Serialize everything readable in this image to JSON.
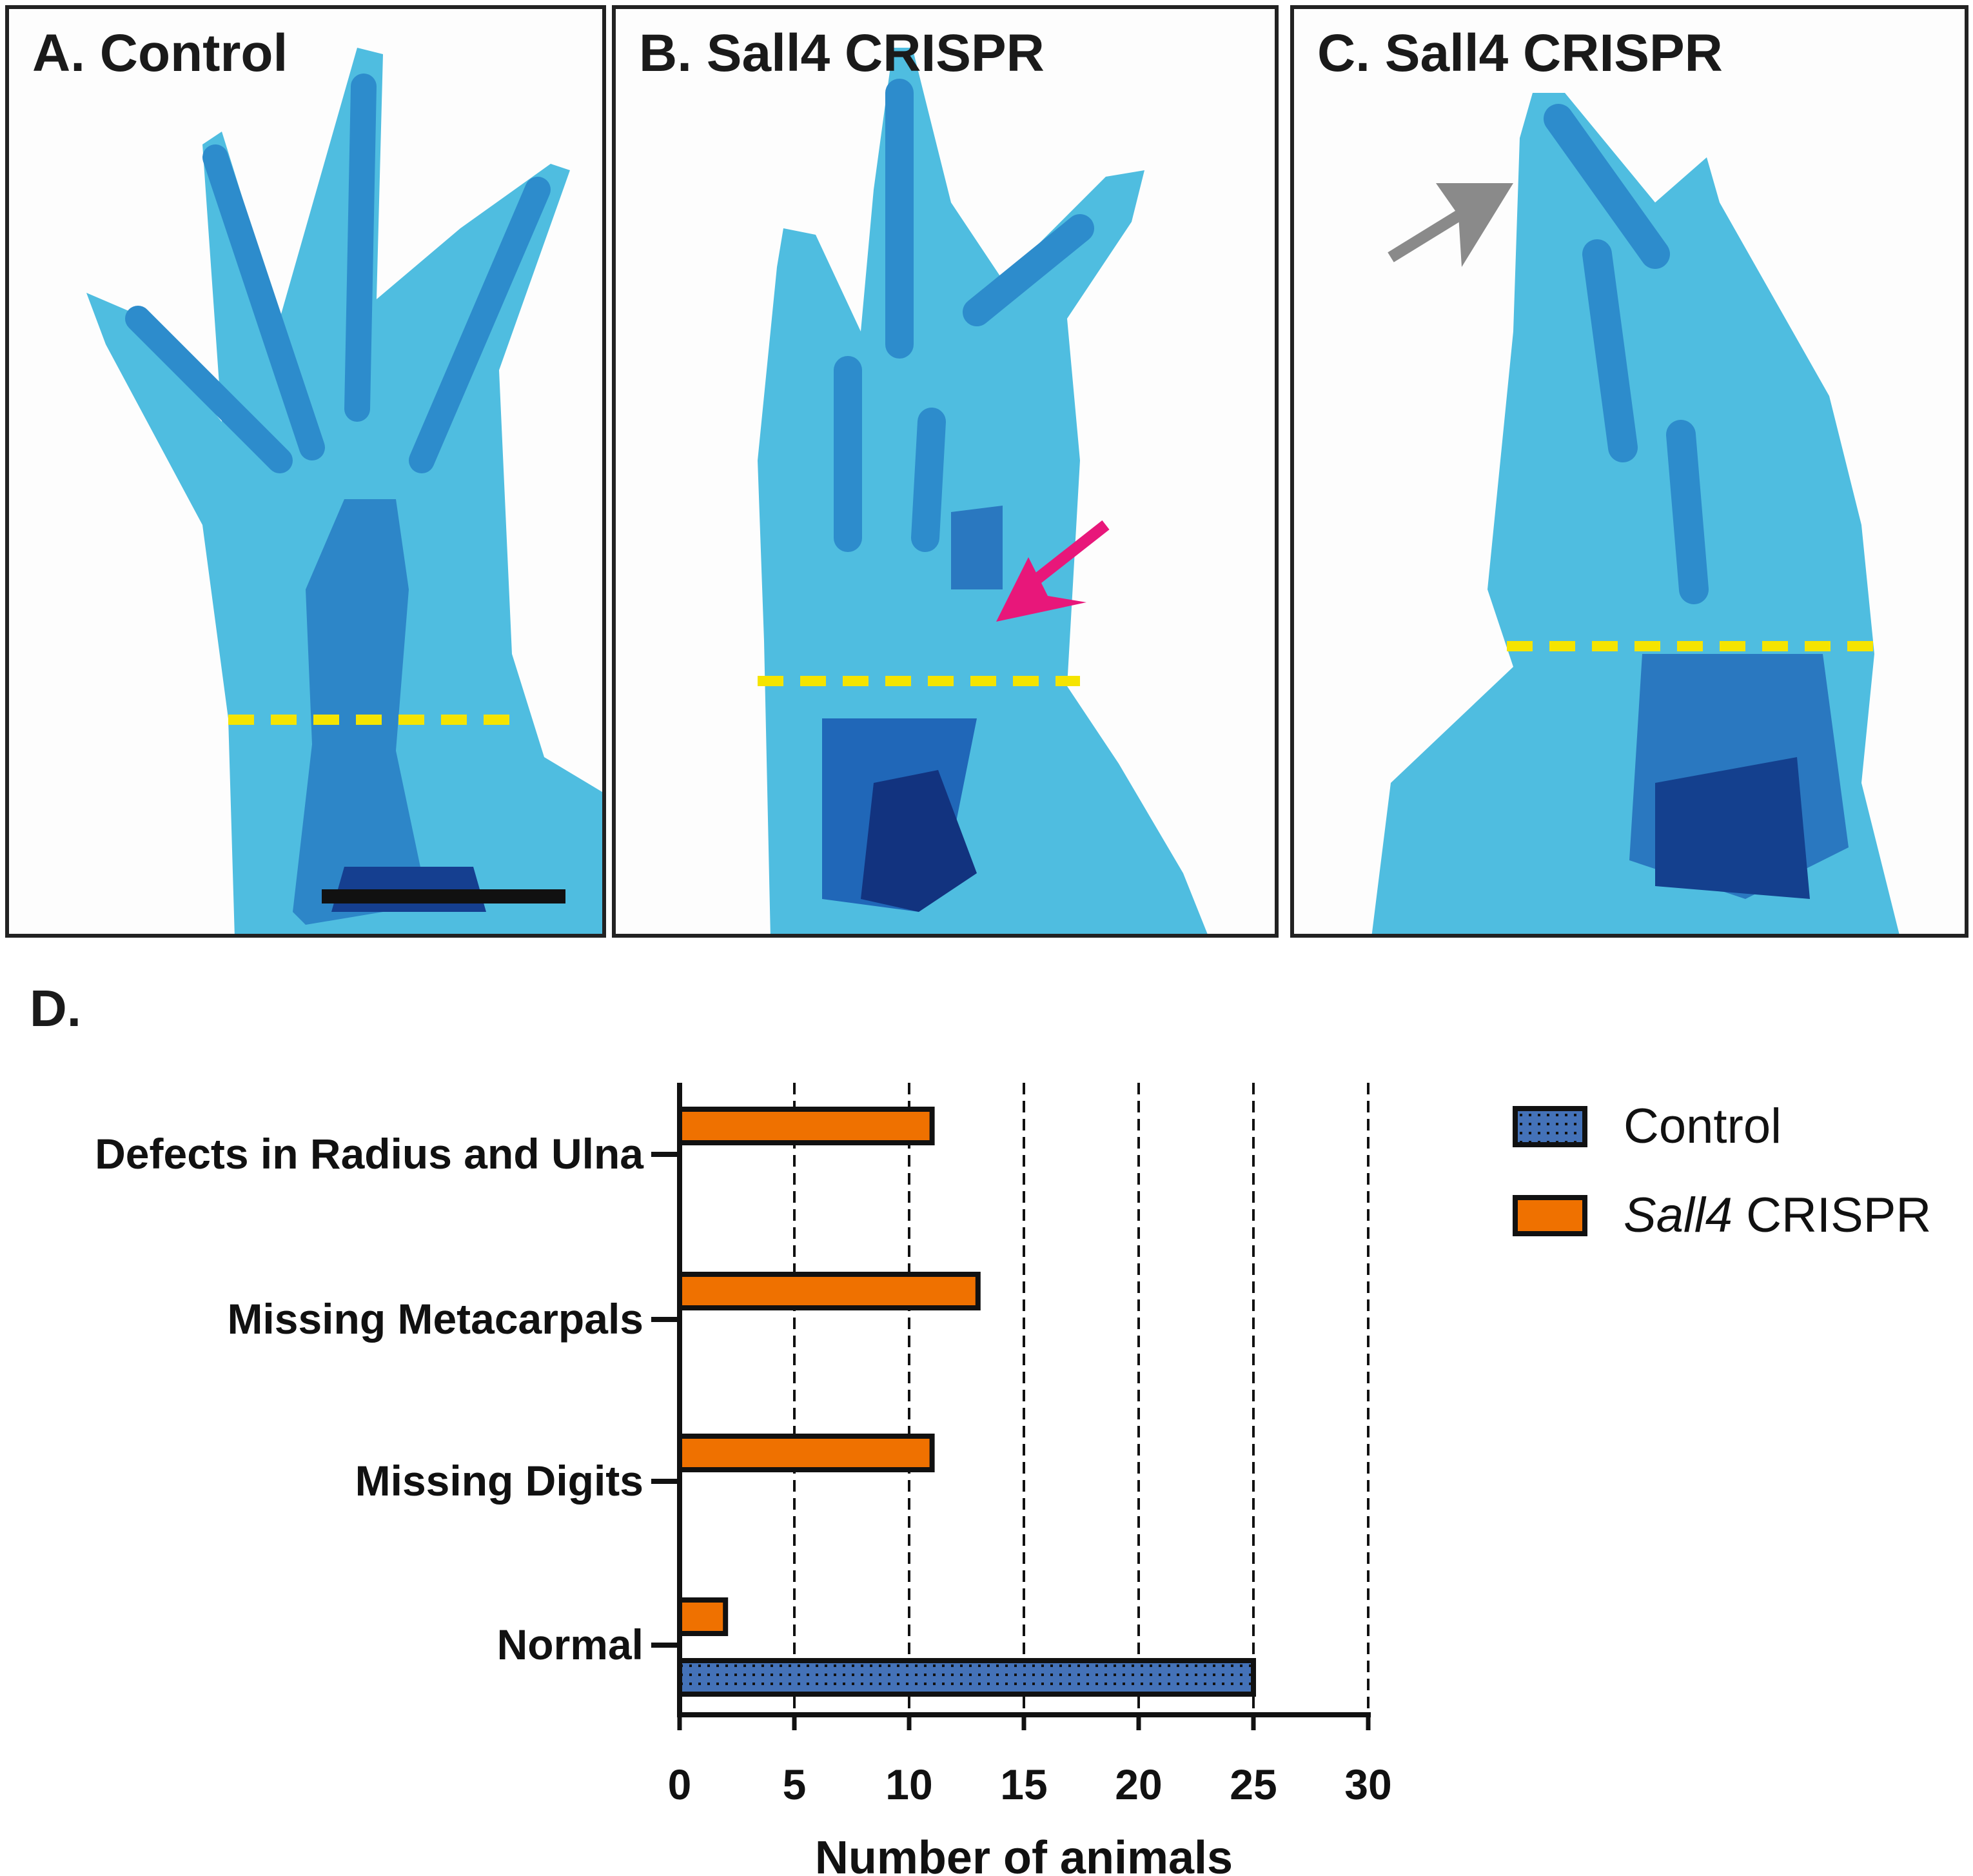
{
  "panels": [
    {
      "label": "A. Control"
    },
    {
      "label": "B. Sall4 CRISPR"
    },
    {
      "label": "C. Sall4 CRISPR"
    }
  ],
  "colors": {
    "cartilage": "#4fbde0",
    "bone_dark": "#1f6fb8",
    "dashed_line": "#f5e400",
    "arrow_b": "#e8177a",
    "arrow_c": "#8a8a8a",
    "control": "#4472b8",
    "sall4": "#ef7100"
  },
  "panel_d_label": "D.",
  "chart_data": {
    "type": "bar",
    "orientation": "horizontal",
    "categories": [
      "Defects in Radius and Ulna",
      "Missing Metacarpals",
      "Missing Digits",
      "Normal"
    ],
    "series": [
      {
        "name": "Control",
        "values": [
          0,
          0,
          0,
          25
        ],
        "color": "#4472b8",
        "pattern": "dotted"
      },
      {
        "name": "Sall4 CRISPR",
        "name_italic": "Sall4",
        "name_rest": " CRISPR",
        "values": [
          11,
          13,
          11,
          2
        ],
        "color": "#ef7100"
      }
    ],
    "xlabel": "Number of animals",
    "xlim": [
      0,
      30
    ],
    "xticks": [
      "0",
      "5",
      "10",
      "15",
      "20",
      "25",
      "30"
    ],
    "grid": "vertical dashed",
    "legend": "right"
  }
}
